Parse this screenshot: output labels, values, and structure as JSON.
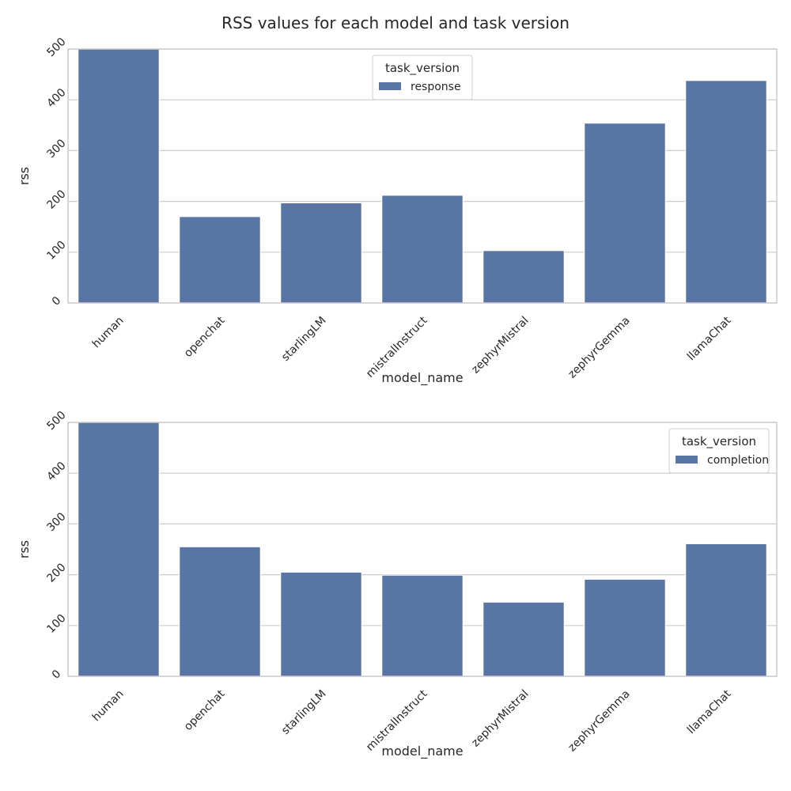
{
  "figure": {
    "title": "RSS values for each model and task version"
  },
  "colors": {
    "bar": "#5975a4",
    "grid": "#cccccc",
    "frame": "#cccccc",
    "text": "#262626"
  },
  "chart_data": [
    {
      "type": "bar",
      "xlabel": "model_name",
      "ylabel": "rss",
      "ylim": [
        0,
        500
      ],
      "yticks": [
        0,
        100,
        200,
        300,
        400,
        500
      ],
      "grid": true,
      "legend": {
        "title": "task_version",
        "placement": "top-center"
      },
      "categories": [
        "human",
        "openchat",
        "starlingLM",
        "mistralInstruct",
        "zephyrMistral",
        "zephyrGemma",
        "llamaChat"
      ],
      "series": [
        {
          "name": "response",
          "values": [
            500,
            170,
            197,
            212,
            103,
            354,
            438
          ]
        }
      ]
    },
    {
      "type": "bar",
      "xlabel": "model_name",
      "ylabel": "rss",
      "ylim": [
        0,
        500
      ],
      "yticks": [
        0,
        100,
        200,
        300,
        400,
        500
      ],
      "grid": true,
      "legend": {
        "title": "task_version",
        "placement": "top-right"
      },
      "categories": [
        "human",
        "openchat",
        "starlingLM",
        "mistralInstruct",
        "zephyrMistral",
        "zephyrGemma",
        "llamaChat"
      ],
      "series": [
        {
          "name": "completion",
          "values": [
            500,
            255,
            205,
            199,
            146,
            191,
            261
          ]
        }
      ]
    }
  ]
}
